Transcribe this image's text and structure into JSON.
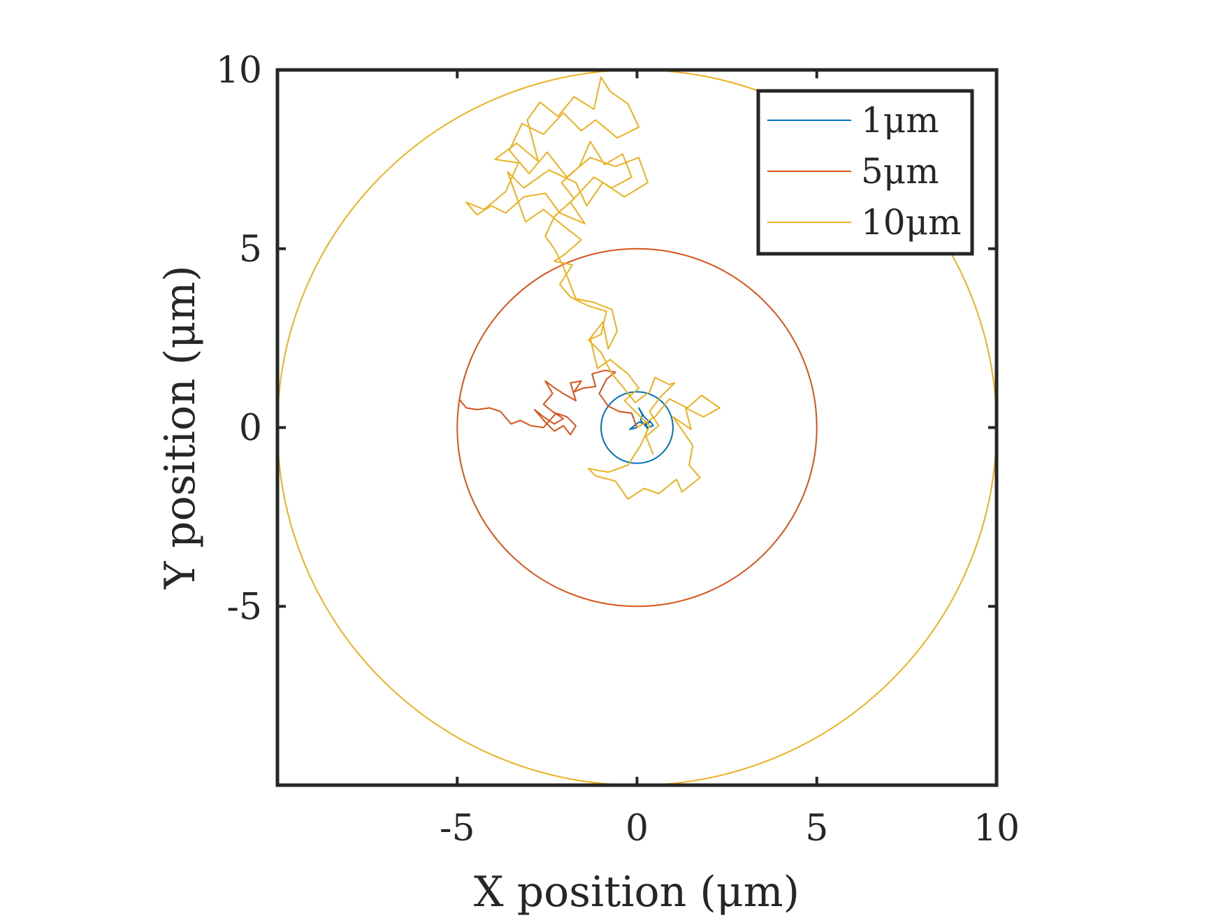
{
  "chart_data": {
    "type": "line",
    "title": "",
    "xlabel": "X position (μm)",
    "ylabel": "Y position (μm)",
    "xlim": [
      -10,
      10
    ],
    "ylim": [
      -10,
      10
    ],
    "xticks": [
      -5,
      0,
      5,
      10
    ],
    "yticks": [
      -5,
      0,
      5,
      10
    ],
    "xtick_labels": [
      "-5",
      "0",
      "5",
      "10"
    ],
    "ytick_labels": [
      "-5",
      "0",
      "5",
      "10"
    ],
    "grid": false,
    "legend": {
      "position": "top-right",
      "entries": [
        "1μm",
        "5μm",
        "10μm"
      ]
    },
    "series": [
      {
        "name": "1μm",
        "color": "#0072BD",
        "boundary_radius": 1,
        "path": [
          [
            0,
            0
          ],
          [
            -0.2,
            -0.05
          ],
          [
            0.05,
            0.15
          ],
          [
            0.25,
            0.1
          ],
          [
            0.3,
            -0.05
          ],
          [
            0.2,
            0.12
          ],
          [
            0.35,
            0.2
          ],
          [
            0.45,
            0.05
          ],
          [
            0.3,
            0.0
          ],
          [
            0.1,
            0.2
          ],
          [
            0.15,
            0.35
          ],
          [
            0.05,
            0.55
          ],
          [
            0.2,
            0.3
          ],
          [
            0.35,
            0.15
          ],
          [
            0.2,
            0.05
          ]
        ]
      },
      {
        "name": "5μm",
        "color": "#D95319",
        "boundary_radius": 5,
        "path": [
          [
            0,
            0
          ],
          [
            -0.15,
            0.4
          ],
          [
            -0.5,
            0.45
          ],
          [
            -0.8,
            0.6
          ],
          [
            -1.05,
            0.95
          ],
          [
            -0.85,
            1.35
          ],
          [
            -0.6,
            1.55
          ],
          [
            -0.9,
            1.6
          ],
          [
            -1.25,
            1.5
          ],
          [
            -1.15,
            1.15
          ],
          [
            -1.5,
            1.1
          ],
          [
            -1.75,
            1.0
          ],
          [
            -1.55,
            1.3
          ],
          [
            -1.85,
            1.25
          ],
          [
            -1.7,
            0.75
          ],
          [
            -2.05,
            0.95
          ],
          [
            -2.35,
            1.15
          ],
          [
            -2.55,
            1.3
          ],
          [
            -2.35,
            0.95
          ],
          [
            -2.6,
            0.65
          ],
          [
            -2.35,
            0.45
          ],
          [
            -2.05,
            0.25
          ],
          [
            -2.3,
            0.1
          ],
          [
            -2.6,
            0.3
          ],
          [
            -2.85,
            0.5
          ],
          [
            -2.55,
            0.15
          ],
          [
            -2.3,
            -0.1
          ],
          [
            -2.05,
            0.05
          ],
          [
            -1.85,
            -0.2
          ],
          [
            -1.7,
            0.05
          ],
          [
            -1.95,
            0.3
          ],
          [
            -2.25,
            0.4
          ],
          [
            -2.6,
            0.0
          ],
          [
            -2.95,
            0.05
          ],
          [
            -3.25,
            0.2
          ],
          [
            -3.5,
            0.1
          ],
          [
            -3.8,
            0.45
          ],
          [
            -4.1,
            0.55
          ],
          [
            -4.45,
            0.5
          ],
          [
            -4.75,
            0.55
          ],
          [
            -4.95,
            0.8
          ]
        ]
      },
      {
        "name": "10μm",
        "color": "#EDB120",
        "boundary_radius": 10,
        "path": [
          [
            0,
            0
          ],
          [
            0.5,
            0.3
          ],
          [
            0.9,
            0.8
          ],
          [
            1.4,
            0.55
          ],
          [
            1.8,
            0.9
          ],
          [
            2.3,
            0.55
          ],
          [
            1.85,
            0.3
          ],
          [
            1.35,
            0.55
          ],
          [
            1.5,
            -0.05
          ],
          [
            1.0,
            0.3
          ],
          [
            1.55,
            -0.5
          ],
          [
            1.45,
            -1.05
          ],
          [
            1.75,
            -1.4
          ],
          [
            1.25,
            -1.8
          ],
          [
            1.1,
            -1.45
          ],
          [
            0.6,
            -1.85
          ],
          [
            0.2,
            -1.7
          ],
          [
            -0.25,
            -2.0
          ],
          [
            -0.6,
            -1.5
          ],
          [
            -1.15,
            -1.35
          ],
          [
            -1.35,
            -1.15
          ],
          [
            -0.8,
            -1.25
          ],
          [
            -0.25,
            -1.05
          ],
          [
            0.1,
            -0.5
          ],
          [
            0.35,
            0.05
          ],
          [
            -0.1,
            0.5
          ],
          [
            -0.35,
            0.75
          ],
          [
            0.05,
            1.1
          ],
          [
            -0.25,
            1.5
          ],
          [
            -0.75,
            1.9
          ],
          [
            -1.1,
            1.65
          ],
          [
            -1.3,
            2.5
          ],
          [
            -0.95,
            2.95
          ],
          [
            -0.8,
            2.2
          ],
          [
            -0.55,
            2.7
          ],
          [
            -0.7,
            3.3
          ],
          [
            -1.2,
            3.5
          ],
          [
            -1.7,
            3.6
          ],
          [
            -2.05,
            4.5
          ],
          [
            -2.3,
            5.0
          ],
          [
            -2.55,
            5.35
          ],
          [
            -2.3,
            5.9
          ],
          [
            -1.75,
            6.4
          ],
          [
            -2.1,
            6.85
          ],
          [
            -1.6,
            7.3
          ],
          [
            -1.3,
            8.0
          ],
          [
            -0.9,
            7.35
          ],
          [
            -0.4,
            7.65
          ],
          [
            -0.15,
            7.0
          ],
          [
            -0.7,
            6.7
          ],
          [
            -1.2,
            7.0
          ],
          [
            -1.85,
            6.3
          ],
          [
            -1.45,
            5.7
          ],
          [
            -2.15,
            6.0
          ],
          [
            -2.55,
            6.55
          ],
          [
            -3.15,
            6.45
          ],
          [
            -3.65,
            6.0
          ],
          [
            -4.05,
            6.2
          ],
          [
            -4.45,
            5.95
          ],
          [
            -4.75,
            6.3
          ],
          [
            -4.25,
            6.1
          ],
          [
            -3.65,
            6.6
          ],
          [
            -3.3,
            7.4
          ],
          [
            -3.95,
            7.5
          ],
          [
            -3.35,
            7.95
          ],
          [
            -2.75,
            7.45
          ],
          [
            -3.05,
            8.6
          ],
          [
            -2.7,
            9.1
          ],
          [
            -2.2,
            8.7
          ],
          [
            -1.75,
            9.25
          ],
          [
            -1.2,
            8.9
          ],
          [
            -1.0,
            9.8
          ],
          [
            -0.75,
            9.4
          ],
          [
            -0.25,
            9.05
          ],
          [
            0.05,
            8.4
          ],
          [
            -0.55,
            8.1
          ],
          [
            -1.15,
            8.6
          ],
          [
            -1.55,
            8.3
          ],
          [
            -2.05,
            8.8
          ],
          [
            -2.6,
            8.2
          ],
          [
            -3.2,
            8.5
          ],
          [
            -3.55,
            7.75
          ],
          [
            -3.0,
            7.1
          ],
          [
            -2.5,
            7.7
          ],
          [
            -1.95,
            7.0
          ],
          [
            -1.3,
            7.55
          ],
          [
            -0.6,
            7.3
          ],
          [
            0.05,
            7.55
          ],
          [
            0.3,
            6.85
          ],
          [
            -0.35,
            6.45
          ],
          [
            -0.95,
            6.85
          ],
          [
            -1.4,
            6.2
          ],
          [
            -1.7,
            6.85
          ],
          [
            -2.45,
            7.2
          ],
          [
            -3.15,
            6.7
          ],
          [
            -3.6,
            7.15
          ],
          [
            -3.1,
            5.75
          ],
          [
            -2.6,
            6.1
          ],
          [
            -2.0,
            5.6
          ],
          [
            -1.55,
            5.25
          ],
          [
            -2.0,
            4.85
          ],
          [
            -2.3,
            4.65
          ],
          [
            -1.8,
            4.55
          ],
          [
            -2.15,
            4.0
          ],
          [
            -1.85,
            3.65
          ],
          [
            -1.35,
            3.4
          ],
          [
            -0.85,
            3.25
          ],
          [
            -1.0,
            2.6
          ],
          [
            -1.35,
            2.45
          ],
          [
            -1.0,
            2.1
          ],
          [
            -0.7,
            1.5
          ],
          [
            -0.4,
            1.15
          ],
          [
            -0.05,
            0.7
          ],
          [
            0.35,
            1.0
          ],
          [
            0.5,
            1.4
          ],
          [
            0.9,
            1.2
          ],
          [
            1.05,
            1.25
          ],
          [
            0.65,
            0.85
          ],
          [
            0.35,
            0.45
          ],
          [
            0.6,
            0.05
          ],
          [
            0.25,
            -0.25
          ],
          [
            0.45,
            -0.75
          ]
        ]
      }
    ]
  }
}
